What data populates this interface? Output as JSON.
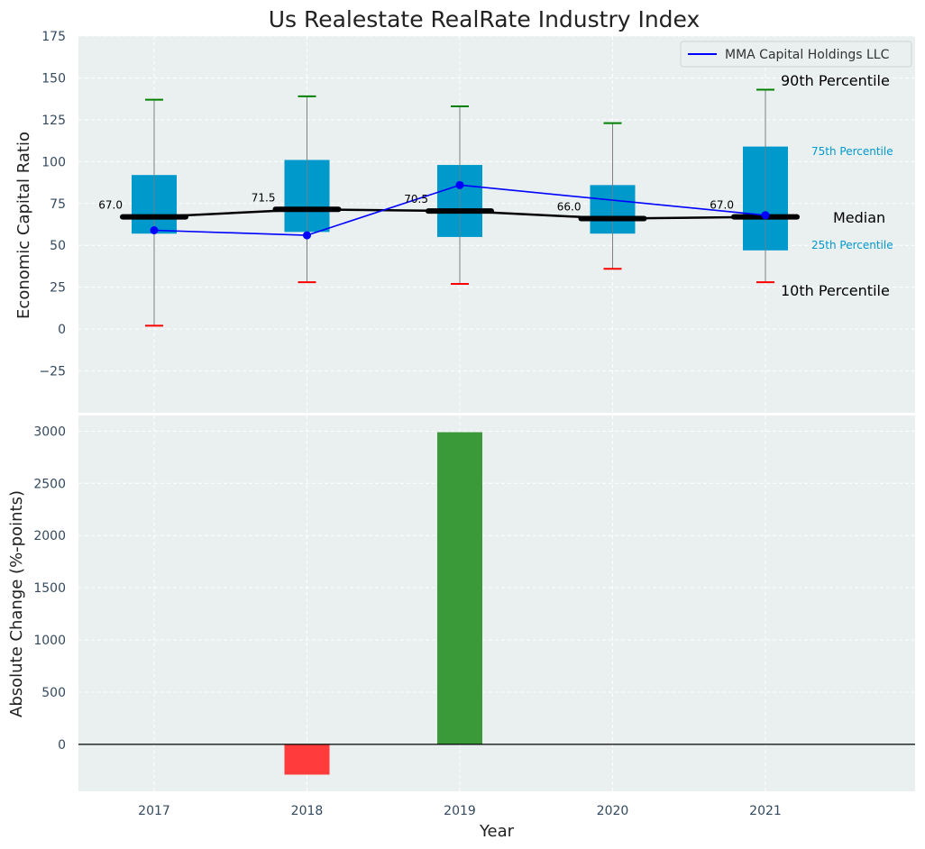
{
  "chart_data": [
    {
      "type": "box",
      "title": "Us Realestate RealRate Industry Index",
      "ylabel": "Economic Capital Ratio",
      "xlabel": "",
      "ylim": [
        -50,
        175
      ],
      "yticks": [
        -25,
        0,
        25,
        50,
        75,
        100,
        125,
        150,
        175
      ],
      "grid": true,
      "legend_position": "top-right",
      "categories": [
        "2017",
        "2018",
        "2019",
        "2020",
        "2021"
      ],
      "boxes": {
        "p10": [
          2,
          28,
          27,
          36,
          28
        ],
        "p25": [
          57,
          58,
          55,
          57,
          47
        ],
        "median": [
          67.0,
          71.5,
          70.5,
          66.0,
          67.0
        ],
        "p75": [
          92,
          101,
          98,
          86,
          109
        ],
        "p90": [
          137,
          139,
          133,
          123,
          143
        ]
      },
      "median_labels": [
        "67.0",
        "71.5",
        "70.5",
        "66.0",
        "67.0"
      ],
      "series": [
        {
          "name": "MMA Capital Holdings LLC",
          "values": [
            59,
            56,
            86,
            null,
            68
          ],
          "color": "#0000ff"
        }
      ],
      "annotations": {
        "p90": "90th Percentile",
        "p75": "75th Percentile",
        "median": "Median",
        "p25": "25th Percentile",
        "p10": "10th Percentile"
      },
      "colors": {
        "box": "#0099cc",
        "median": "#000000",
        "p90_cap": "#008000",
        "p10_cap": "#ff0000",
        "whisker": "#808080",
        "background": "#eaeff0"
      }
    },
    {
      "type": "bar",
      "title": "",
      "ylabel": "Absolute Change (%-points)",
      "xlabel": "Year",
      "ylim": [
        -450,
        3150
      ],
      "yticks": [
        0,
        500,
        1000,
        1500,
        2000,
        2500,
        3000
      ],
      "grid": true,
      "categories": [
        "2017",
        "2018",
        "2019",
        "2020",
        "2021"
      ],
      "values": [
        0,
        -290,
        2990,
        0,
        0
      ],
      "colors": {
        "positive": "#3a9a3a",
        "negative": "#ff3b3b",
        "zero_line": "#000000"
      }
    }
  ]
}
